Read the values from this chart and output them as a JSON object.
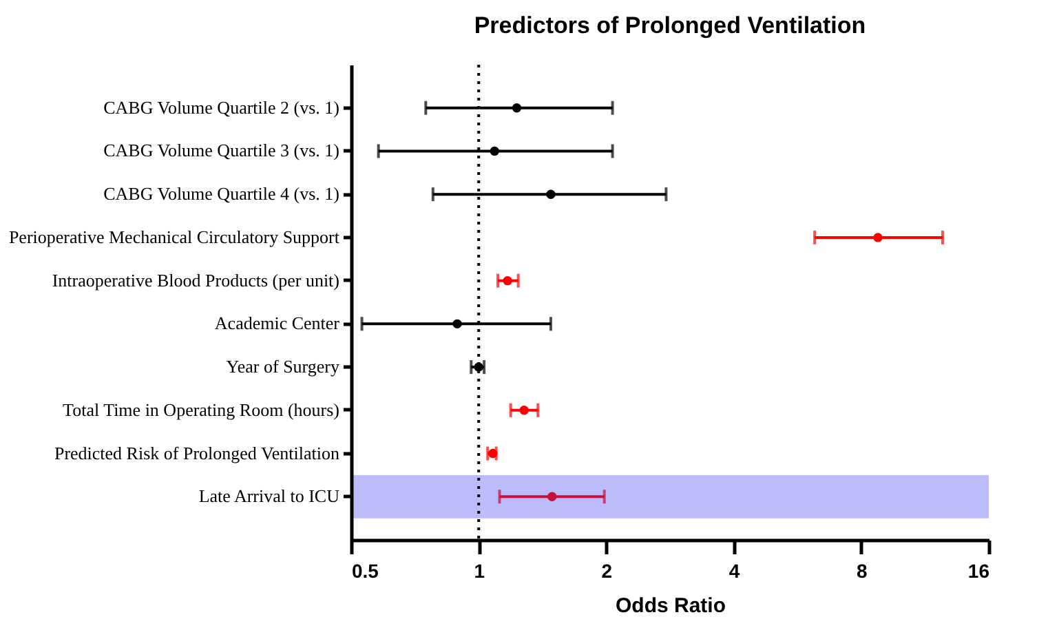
{
  "chart_data": {
    "type": "scatter",
    "orientation": "horizontal",
    "title": "Predictors of Prolonged Ventilation",
    "xlabel": "Odds Ratio",
    "categories": [
      "CABG Volume Quartile 2 (vs. 1)",
      "CABG Volume Quartile 3 (vs. 1)",
      "CABG Volume Quartile 4 (vs. 1)",
      "Perioperative Mechanical Circulatory Support",
      "Intraoperative Blood Products (per unit)",
      "Academic Center",
      "Year of Surgery",
      "Total Time in Operating Room (hours)",
      "Predicted Risk of Prolonged Ventilation",
      "Late Arrival to ICU"
    ],
    "values": [
      1.23,
      1.09,
      1.48,
      8.76,
      1.17,
      0.89,
      1.0,
      1.28,
      1.08,
      1.49
    ],
    "errors": [
      [
        0.75,
        2.07
      ],
      [
        0.58,
        2.07
      ],
      [
        0.78,
        2.77
      ],
      [
        6.21,
        12.45
      ],
      [
        1.11,
        1.24
      ],
      [
        0.53,
        1.48
      ],
      [
        0.96,
        1.03
      ],
      [
        1.19,
        1.38
      ],
      [
        1.05,
        1.1
      ],
      [
        1.12,
        1.98
      ]
    ],
    "colors": [
      "#000000",
      "#000000",
      "#000000",
      "#ff0000",
      "#ff0000",
      "#000000",
      "#000000",
      "#ff0000",
      "#ff0000",
      "#c8103c"
    ],
    "log": "x",
    "xlim": [
      0.5,
      16
    ],
    "xticks": [
      0.5,
      1,
      2,
      4,
      8,
      16
    ],
    "ref_lines": [
      {
        "axis": "x",
        "value": 1,
        "line_style": "dotted",
        "color": "#000000"
      }
    ],
    "bands": [
      {
        "axis": "y",
        "from": "Late Arrival to ICU",
        "to": "Late Arrival to ICU",
        "color": "#b8b8fa"
      }
    ],
    "marker": "circle",
    "grid": false,
    "legend": false
  }
}
